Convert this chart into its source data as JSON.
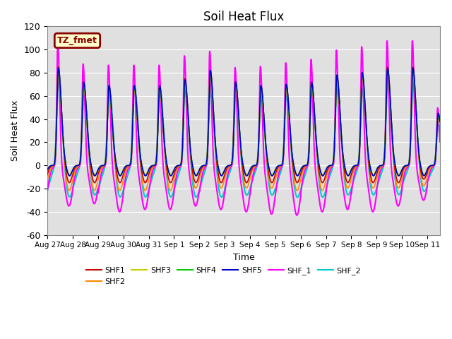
{
  "title": "Soil Heat Flux",
  "xlabel": "Time",
  "ylabel": "Soil Heat Flux",
  "ylim": [
    -60,
    120
  ],
  "yticks": [
    -60,
    -40,
    -20,
    0,
    20,
    40,
    60,
    80,
    100,
    120
  ],
  "background_color": "#ffffff",
  "plot_bg_color": "#e0e0e0",
  "annotation_text": "TZ_fmet",
  "annotation_bg": "#ffffcc",
  "annotation_border": "#8b0000",
  "series": {
    "SHF1": {
      "color": "#cc0000",
      "lw": 1.2
    },
    "SHF2": {
      "color": "#ff8800",
      "lw": 1.2
    },
    "SHF3": {
      "color": "#cccc00",
      "lw": 1.2
    },
    "SHF4": {
      "color": "#00cc00",
      "lw": 1.2
    },
    "SHF5": {
      "color": "#0000cc",
      "lw": 1.2
    },
    "SHF_1": {
      "color": "#ff00ff",
      "lw": 1.5
    },
    "SHF_2": {
      "color": "#00cccc",
      "lw": 1.5
    }
  },
  "xtick_labels": [
    "Aug 27",
    "Aug 28",
    "Aug 29",
    "Aug 30",
    "Aug 31",
    "Sep 1",
    "Sep 2",
    "Sep 3",
    "Sep 4",
    "Sep 5",
    "Sep 6",
    "Sep 7",
    "Sep 8",
    "Sep 9",
    "Sep 10",
    "Sep 11"
  ],
  "n_days": 15.5
}
